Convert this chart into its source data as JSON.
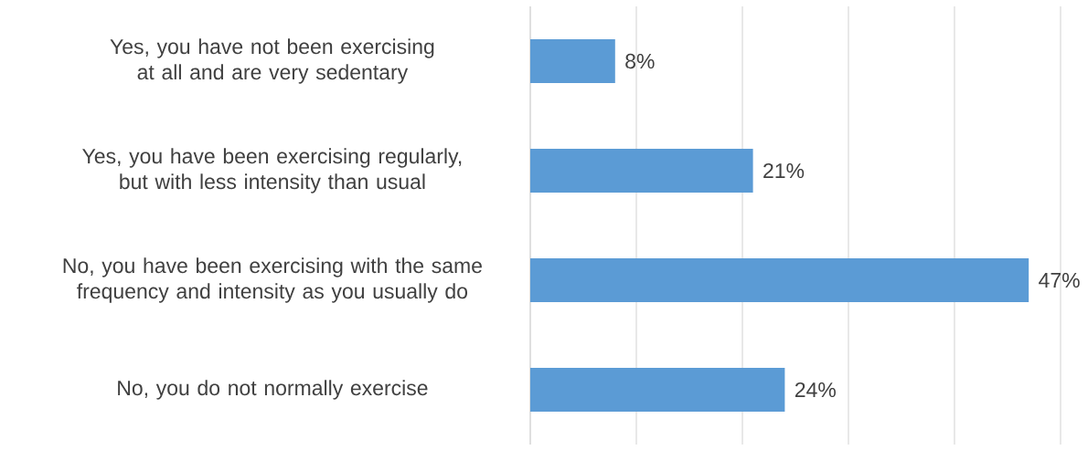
{
  "chart_data": {
    "type": "bar",
    "orientation": "horizontal",
    "categories": [
      "Yes, you have not been exercising at all and are very sedentary",
      "Yes, you have been exercising regularly, but with less intensity than usual",
      "No, you have been exercising with the same frequency and intensity as you usually do",
      "No, you do not normally exercise"
    ],
    "values": [
      8,
      21,
      47,
      24
    ],
    "value_labels": [
      "8%",
      "21%",
      "47%",
      "24%"
    ],
    "color": "#5b9bd5",
    "xlim": [
      0,
      50
    ],
    "xticks": [
      {
        "value": 0,
        "label": null
      },
      {
        "value": 10,
        "label": null
      },
      {
        "value": 20,
        "label": null
      },
      {
        "value": 30,
        "label": null
      },
      {
        "value": 40,
        "label": null
      },
      {
        "value": 50,
        "label": null
      }
    ],
    "grid": "x",
    "tick_labels": "y"
  }
}
